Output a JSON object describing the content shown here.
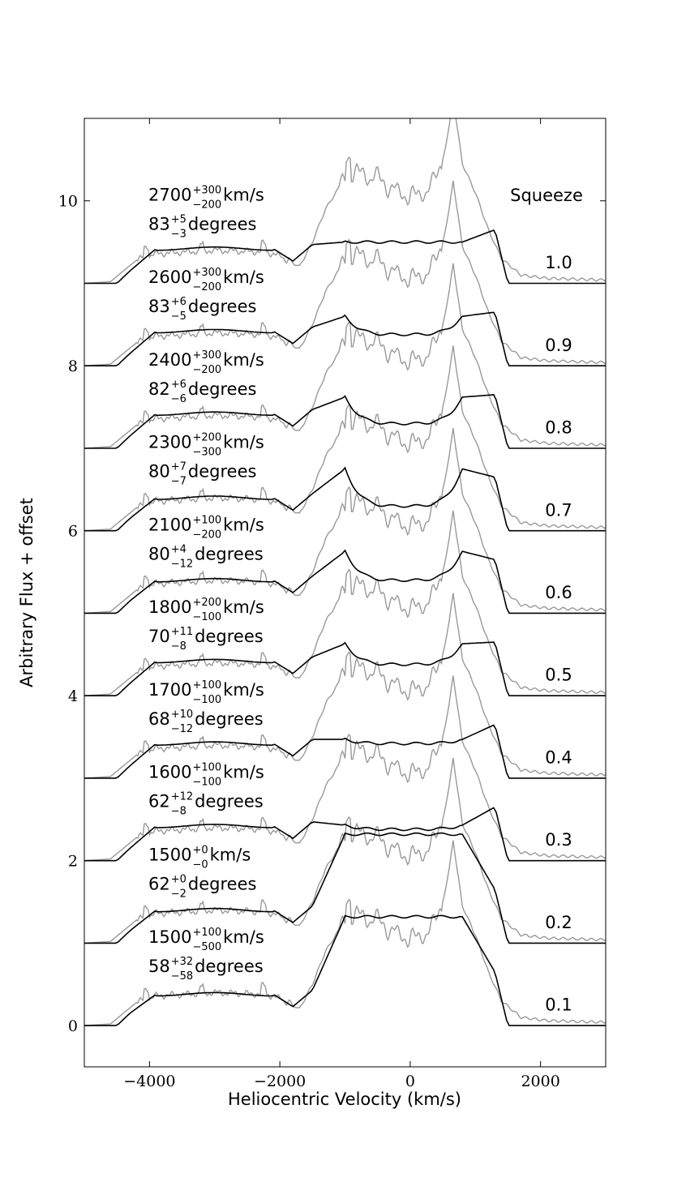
{
  "chart_data": {
    "type": "line",
    "xlabel": "Heliocentric Velocity (km/s)",
    "ylabel": "Arbitrary Flux + offset",
    "xlim": [
      -5000,
      3000
    ],
    "ylim": [
      -0.5,
      11.0
    ],
    "xticks": [
      -4000,
      -2000,
      0,
      2000
    ],
    "xtick_labels": [
      "−4000",
      "−2000",
      "0",
      "2000"
    ],
    "yticks": [
      0,
      2,
      4,
      6,
      8,
      10
    ],
    "ytick_labels": [
      "0",
      "2",
      "4",
      "6",
      "8",
      "10"
    ],
    "grid": false,
    "squeeze_header": "Squeeze",
    "series_colors": {
      "observed": "#999999",
      "model": "#000000"
    },
    "panels": [
      {
        "squeeze": "0.1",
        "offset": 0,
        "vel": {
          "base": "1500",
          "sup": "+100",
          "sub": "−500",
          "unit": " km/s"
        },
        "inc": {
          "base": "58",
          "sup": "+32",
          "sub": "−58",
          "unit": " degrees"
        },
        "plateau": 0.38,
        "center": 1.32,
        "peak": 0.0
      },
      {
        "squeeze": "0.2",
        "offset": 1,
        "vel": {
          "base": "1500",
          "sup": "+0",
          "sub": "−0",
          "unit": " km/s"
        },
        "inc": {
          "base": "62",
          "sup": "+0",
          "sub": "−2",
          "unit": " degrees"
        },
        "plateau": 0.4,
        "center": 1.32,
        "peak": 0.0
      },
      {
        "squeeze": "0.3",
        "offset": 2,
        "vel": {
          "base": "1600",
          "sup": "+100",
          "sub": "−100",
          "unit": " km/s"
        },
        "inc": {
          "base": "62",
          "sup": "+12",
          "sub": "−8",
          "unit": " degrees"
        },
        "plateau": 0.42,
        "center": 0.38,
        "peak": 0.05
      },
      {
        "squeeze": "0.4",
        "offset": 3,
        "vel": {
          "base": "1700",
          "sup": "+100",
          "sub": "−100",
          "unit": " km/s"
        },
        "inc": {
          "base": "68",
          "sup": "+10",
          "sub": "−12",
          "unit": " degrees"
        },
        "plateau": 0.42,
        "center": 0.42,
        "peak": 0.05
      },
      {
        "squeeze": "0.5",
        "offset": 4,
        "vel": {
          "base": "1800",
          "sup": "+200",
          "sub": "−100",
          "unit": " km/s"
        },
        "inc": {
          "base": "70",
          "sup": "+11",
          "sub": "−8",
          "unit": " degrees"
        },
        "plateau": 0.42,
        "center": 0.38,
        "peak": 0.25
      },
      {
        "squeeze": "0.6",
        "offset": 5,
        "vel": {
          "base": "2100",
          "sup": "+100",
          "sub": "−200",
          "unit": " km/s"
        },
        "inc": {
          "base": "80",
          "sup": "+4",
          "sub": "−12",
          "unit": " degrees"
        },
        "plateau": 0.4,
        "center": 0.4,
        "peak": 0.35
      },
      {
        "squeeze": "0.7",
        "offset": 6,
        "vel": {
          "base": "2300",
          "sup": "+200",
          "sub": "−300",
          "unit": " km/s"
        },
        "inc": {
          "base": "80",
          "sup": "+7",
          "sub": "−7",
          "unit": " degrees"
        },
        "plateau": 0.4,
        "center": 0.3,
        "peak": 0.45
      },
      {
        "squeeze": "0.8",
        "offset": 7,
        "vel": {
          "base": "2400",
          "sup": "+300",
          "sub": "−200",
          "unit": " km/s"
        },
        "inc": {
          "base": "82",
          "sup": "+6",
          "sub": "−6",
          "unit": " degrees"
        },
        "plateau": 0.42,
        "center": 0.3,
        "peak": 0.32
      },
      {
        "squeeze": "0.9",
        "offset": 8,
        "vel": {
          "base": "2600",
          "sup": "+300",
          "sub": "−200",
          "unit": " km/s"
        },
        "inc": {
          "base": "83",
          "sup": "+6",
          "sub": "−5",
          "unit": " degrees"
        },
        "plateau": 0.42,
        "center": 0.38,
        "peak": 0.22
      },
      {
        "squeeze": "1.0",
        "offset": 9,
        "vel": {
          "base": "2700",
          "sup": "+300",
          "sub": "−200",
          "unit": " km/s"
        },
        "inc": {
          "base": "83",
          "sup": "+5",
          "sub": "−3",
          "unit": " degrees"
        },
        "plateau": 0.42,
        "center": 0.5,
        "peak": 0.0
      }
    ]
  }
}
